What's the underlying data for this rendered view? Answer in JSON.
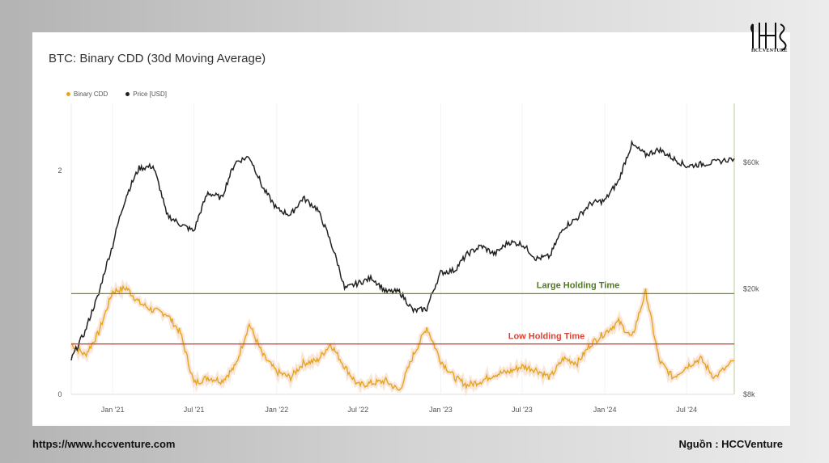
{
  "logo_text": "HCCVENTURE",
  "footer": {
    "url": "https://www.hccventure.com",
    "source": "Nguồn : HCCVenture"
  },
  "colors": {
    "binary_cdd": "#e4a521",
    "price": "#222222",
    "large_line": "#6b8e23",
    "large_text": "#4f7a1f",
    "low_line": "#d94436",
    "low_text": "#d94436"
  },
  "chart_data": {
    "type": "line",
    "title": "BTC: Binary CDD (30d Moving Average)",
    "legend": [
      "Binary CDD",
      "Price [USD]"
    ],
    "x_ticks": [
      "Jan '21",
      "Jul '21",
      "Jan '22",
      "Jul '22",
      "Jan '23",
      "Jul '23",
      "Jan '24",
      "Jul '24"
    ],
    "x_tick_dates": [
      "2021-01-01",
      "2021-07-01",
      "2022-01-01",
      "2022-07-01",
      "2023-01-01",
      "2023-07-01",
      "2024-01-01",
      "2024-07-01"
    ],
    "x_range": [
      "2020-10-01",
      "2024-10-15"
    ],
    "y_left": {
      "ticks": [
        "0",
        "2"
      ],
      "range": [
        0,
        2.6
      ]
    },
    "y_right": {
      "ticks": [
        "$8k",
        "$20k",
        "$60k"
      ],
      "tick_values": [
        8000,
        20000,
        60000
      ],
      "scale": "log",
      "range": [
        8000,
        100000
      ]
    },
    "horizontal_lines": [
      {
        "label": "Large Holding Time",
        "value": 0.9
      },
      {
        "label": "Low Holding Time",
        "value": 0.45
      }
    ],
    "series": [
      {
        "name": "Binary CDD",
        "axis": "left",
        "x": [
          "2020-10-01",
          "2020-11-01",
          "2020-12-01",
          "2021-01-01",
          "2021-02-01",
          "2021-03-01",
          "2021-04-01",
          "2021-05-01",
          "2021-06-01",
          "2021-07-01",
          "2021-08-01",
          "2021-09-01",
          "2021-10-01",
          "2021-11-01",
          "2021-12-01",
          "2022-01-01",
          "2022-02-01",
          "2022-03-01",
          "2022-04-01",
          "2022-05-01",
          "2022-06-01",
          "2022-07-01",
          "2022-08-01",
          "2022-09-01",
          "2022-10-01",
          "2022-11-01",
          "2022-12-01",
          "2023-01-01",
          "2023-02-01",
          "2023-03-01",
          "2023-04-01",
          "2023-05-01",
          "2023-06-01",
          "2023-07-01",
          "2023-08-01",
          "2023-09-01",
          "2023-10-01",
          "2023-11-01",
          "2023-12-01",
          "2024-01-01",
          "2024-02-01",
          "2024-03-01",
          "2024-04-01",
          "2024-05-01",
          "2024-06-01",
          "2024-07-01",
          "2024-08-01",
          "2024-09-01",
          "2024-10-15"
        ],
        "values": [
          0.45,
          0.35,
          0.55,
          0.92,
          0.95,
          0.82,
          0.75,
          0.72,
          0.55,
          0.1,
          0.15,
          0.12,
          0.25,
          0.63,
          0.35,
          0.2,
          0.15,
          0.28,
          0.3,
          0.45,
          0.25,
          0.08,
          0.1,
          0.12,
          0.03,
          0.35,
          0.6,
          0.3,
          0.15,
          0.08,
          0.12,
          0.18,
          0.2,
          0.25,
          0.22,
          0.15,
          0.32,
          0.28,
          0.45,
          0.55,
          0.65,
          0.5,
          0.92,
          0.3,
          0.15,
          0.25,
          0.32,
          0.15,
          0.3
        ]
      },
      {
        "name": "Price [USD]",
        "axis": "right",
        "x": [
          "2020-10-01",
          "2020-11-01",
          "2020-12-01",
          "2021-01-01",
          "2021-02-01",
          "2021-03-01",
          "2021-04-01",
          "2021-05-01",
          "2021-06-01",
          "2021-07-01",
          "2021-08-01",
          "2021-09-01",
          "2021-10-01",
          "2021-11-01",
          "2021-12-01",
          "2022-01-01",
          "2022-02-01",
          "2022-03-01",
          "2022-04-01",
          "2022-05-01",
          "2022-06-01",
          "2022-07-01",
          "2022-08-01",
          "2022-09-01",
          "2022-10-01",
          "2022-11-01",
          "2022-12-01",
          "2023-01-01",
          "2023-02-01",
          "2023-03-01",
          "2023-04-01",
          "2023-05-01",
          "2023-06-01",
          "2023-07-01",
          "2023-08-01",
          "2023-09-01",
          "2023-10-01",
          "2023-11-01",
          "2023-12-01",
          "2024-01-01",
          "2024-02-01",
          "2024-03-01",
          "2024-04-01",
          "2024-05-01",
          "2024-06-01",
          "2024-07-01",
          "2024-08-01",
          "2024-09-01",
          "2024-10-15"
        ],
        "values": [
          10800,
          13800,
          19000,
          29000,
          45000,
          57000,
          58000,
          38000,
          35000,
          33000,
          46000,
          44000,
          60000,
          63000,
          48000,
          40000,
          38000,
          44000,
          40000,
          30000,
          20000,
          21000,
          22000,
          19500,
          19500,
          16500,
          16800,
          23000,
          23500,
          27000,
          29000,
          27000,
          30000,
          29500,
          26000,
          26500,
          34000,
          37000,
          42000,
          43000,
          51000,
          70000,
          64000,
          67000,
          62000,
          58000,
          59000,
          60000,
          62000
        ]
      }
    ]
  }
}
